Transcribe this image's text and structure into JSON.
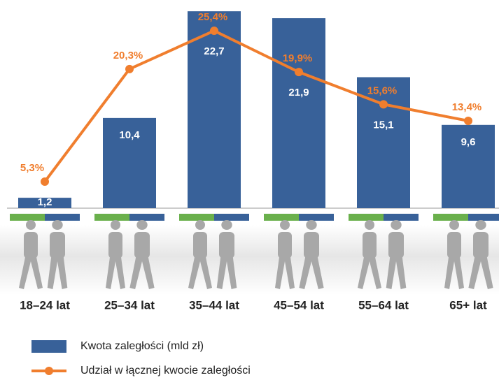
{
  "chart_data": {
    "type": "bar-line",
    "categories": [
      "18–24 lat",
      "25–34 lat",
      "35–44 lat",
      "45–54 lat",
      "55–64 lat",
      "65+ lat"
    ],
    "ylim": [
      0,
      24
    ],
    "y2lim": [
      0,
      29.5
    ],
    "series": [
      {
        "name": "Kwota zaległości (mld zł)",
        "type": "bar",
        "color": "#386199",
        "values": [
          1.2,
          10.4,
          22.7,
          21.9,
          15.1,
          9.6
        ],
        "value_labels": [
          "1,2",
          "10,4",
          "22,7",
          "21,9",
          "15,1",
          "9,6"
        ]
      },
      {
        "name": "Udział w łącznej kwocie zaległości",
        "type": "line",
        "axis": "y2",
        "color": "#f07e2e",
        "values": [
          5.3,
          20.3,
          25.4,
          19.9,
          15.6,
          13.4
        ],
        "value_labels": [
          "5,3%",
          "20,3%",
          "25,4%",
          "19,9%",
          "15,6%",
          "13,4%"
        ]
      }
    ]
  }
}
